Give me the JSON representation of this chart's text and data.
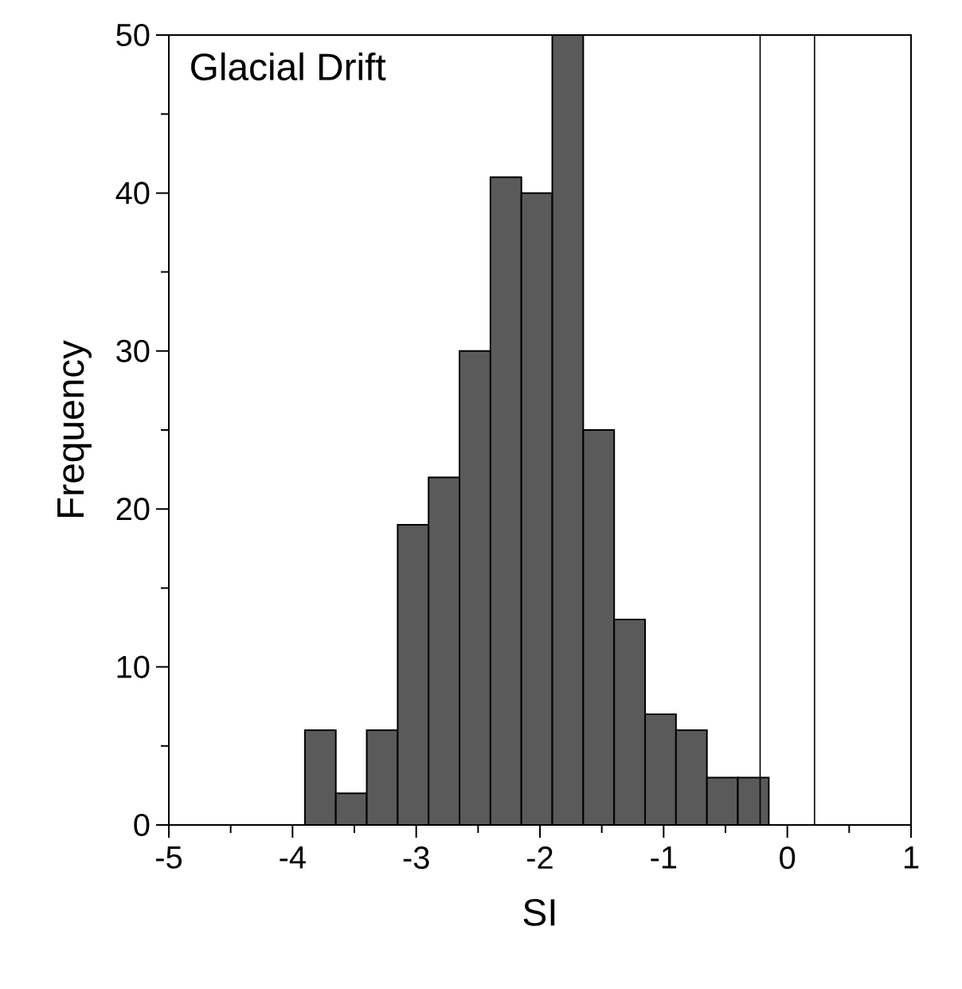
{
  "chart_data": {
    "type": "histogram",
    "title": "Glacial Drift",
    "xlabel": "SI",
    "ylabel": "Frequency",
    "bins": [
      -3.9,
      -3.65,
      -3.4,
      -3.15,
      -2.9,
      -2.65,
      -2.4,
      -2.15,
      -1.9,
      -1.65,
      -1.4,
      -1.15,
      -0.9,
      -0.65,
      -0.4,
      -0.15
    ],
    "values": [
      6,
      2,
      6,
      19,
      22,
      30,
      41,
      40,
      50,
      25,
      13,
      7,
      6,
      3,
      3
    ],
    "color": "#5a5a5a",
    "xlim": [
      -5,
      1
    ],
    "ylim": [
      0,
      50
    ],
    "xticks": [
      -5,
      -4,
      -3,
      -2,
      -1,
      0,
      1
    ],
    "yticks": [
      0,
      10,
      20,
      30,
      40,
      50
    ],
    "grid": false,
    "ref_lines": [
      {
        "axis": "x",
        "value": -0.22
      },
      {
        "axis": "x",
        "value": 0.22
      }
    ]
  }
}
